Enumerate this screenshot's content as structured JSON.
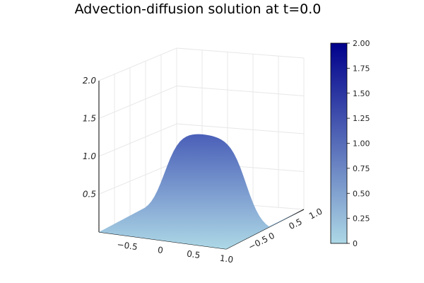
{
  "chart_data": {
    "type": "surface",
    "title": "Advection-diffusion solution at t=0.0",
    "x_ticks": [
      "−0.5",
      "0",
      "0.5",
      "1.0"
    ],
    "y_ticks": [
      "−0.5",
      "0",
      "0.5",
      "1.0"
    ],
    "z_ticks": [
      "0.5",
      "1.0",
      "1.5",
      "2.0"
    ],
    "z_range": [
      0,
      2.0
    ],
    "colorbar": {
      "range": [
        0,
        2.0
      ],
      "ticks": [
        "0",
        "0.25",
        "0.50",
        "0.75",
        "1.00",
        "1.25",
        "1.50",
        "1.75",
        "2.00"
      ],
      "colors": [
        "#add8e6",
        "#00008b"
      ]
    },
    "surface_peak_z": 1.2,
    "grid": true
  }
}
